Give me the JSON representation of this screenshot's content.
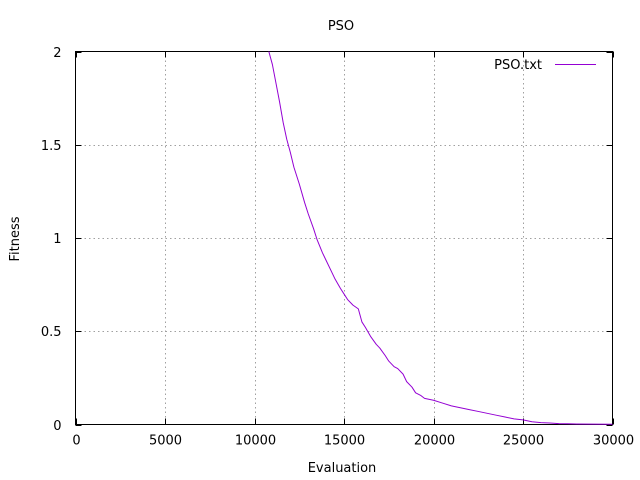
{
  "chart_data": {
    "type": "line",
    "title": "PSO",
    "xlabel": "Evaluation",
    "ylabel": "Fitness",
    "xlim": [
      0,
      30000
    ],
    "ylim": [
      0,
      2
    ],
    "x_ticks": [
      0,
      5000,
      10000,
      15000,
      20000,
      25000,
      30000
    ],
    "y_ticks": [
      0,
      0.5,
      1,
      1.5,
      2
    ],
    "x_tick_labels": [
      "0",
      "5000",
      "10000",
      "15000",
      "20000",
      "25000",
      "30000"
    ],
    "y_tick_labels": [
      "0",
      "0.5",
      "1",
      "1.5",
      "2"
    ],
    "grid": true,
    "legend_position": "top-right",
    "series": [
      {
        "name": "PSO.txt",
        "color": "#9400d3",
        "x": [
          10800,
          11000,
          11200,
          11400,
          11600,
          11800,
          12000,
          12200,
          12500,
          12800,
          13000,
          13300,
          13500,
          13800,
          14000,
          14300,
          14500,
          14800,
          15000,
          15200,
          15500,
          15800,
          16000,
          16200,
          16500,
          16800,
          17000,
          17300,
          17500,
          17800,
          18000,
          18300,
          18500,
          18800,
          19000,
          19300,
          19500,
          20000,
          20500,
          21000,
          21500,
          22000,
          22500,
          23000,
          23500,
          24000,
          24500,
          25000,
          25500,
          26000,
          26500,
          27000,
          27500,
          28000,
          29000,
          30000
        ],
        "y": [
          2.0,
          1.93,
          1.83,
          1.73,
          1.62,
          1.53,
          1.46,
          1.38,
          1.29,
          1.19,
          1.13,
          1.05,
          0.99,
          0.92,
          0.88,
          0.82,
          0.78,
          0.73,
          0.7,
          0.67,
          0.64,
          0.62,
          0.55,
          0.52,
          0.47,
          0.43,
          0.41,
          0.37,
          0.34,
          0.31,
          0.3,
          0.27,
          0.23,
          0.2,
          0.17,
          0.155,
          0.14,
          0.13,
          0.115,
          0.1,
          0.09,
          0.08,
          0.07,
          0.06,
          0.05,
          0.04,
          0.03,
          0.025,
          0.015,
          0.01,
          0.008,
          0.005,
          0.004,
          0.003,
          0.002,
          0.001
        ]
      }
    ]
  }
}
